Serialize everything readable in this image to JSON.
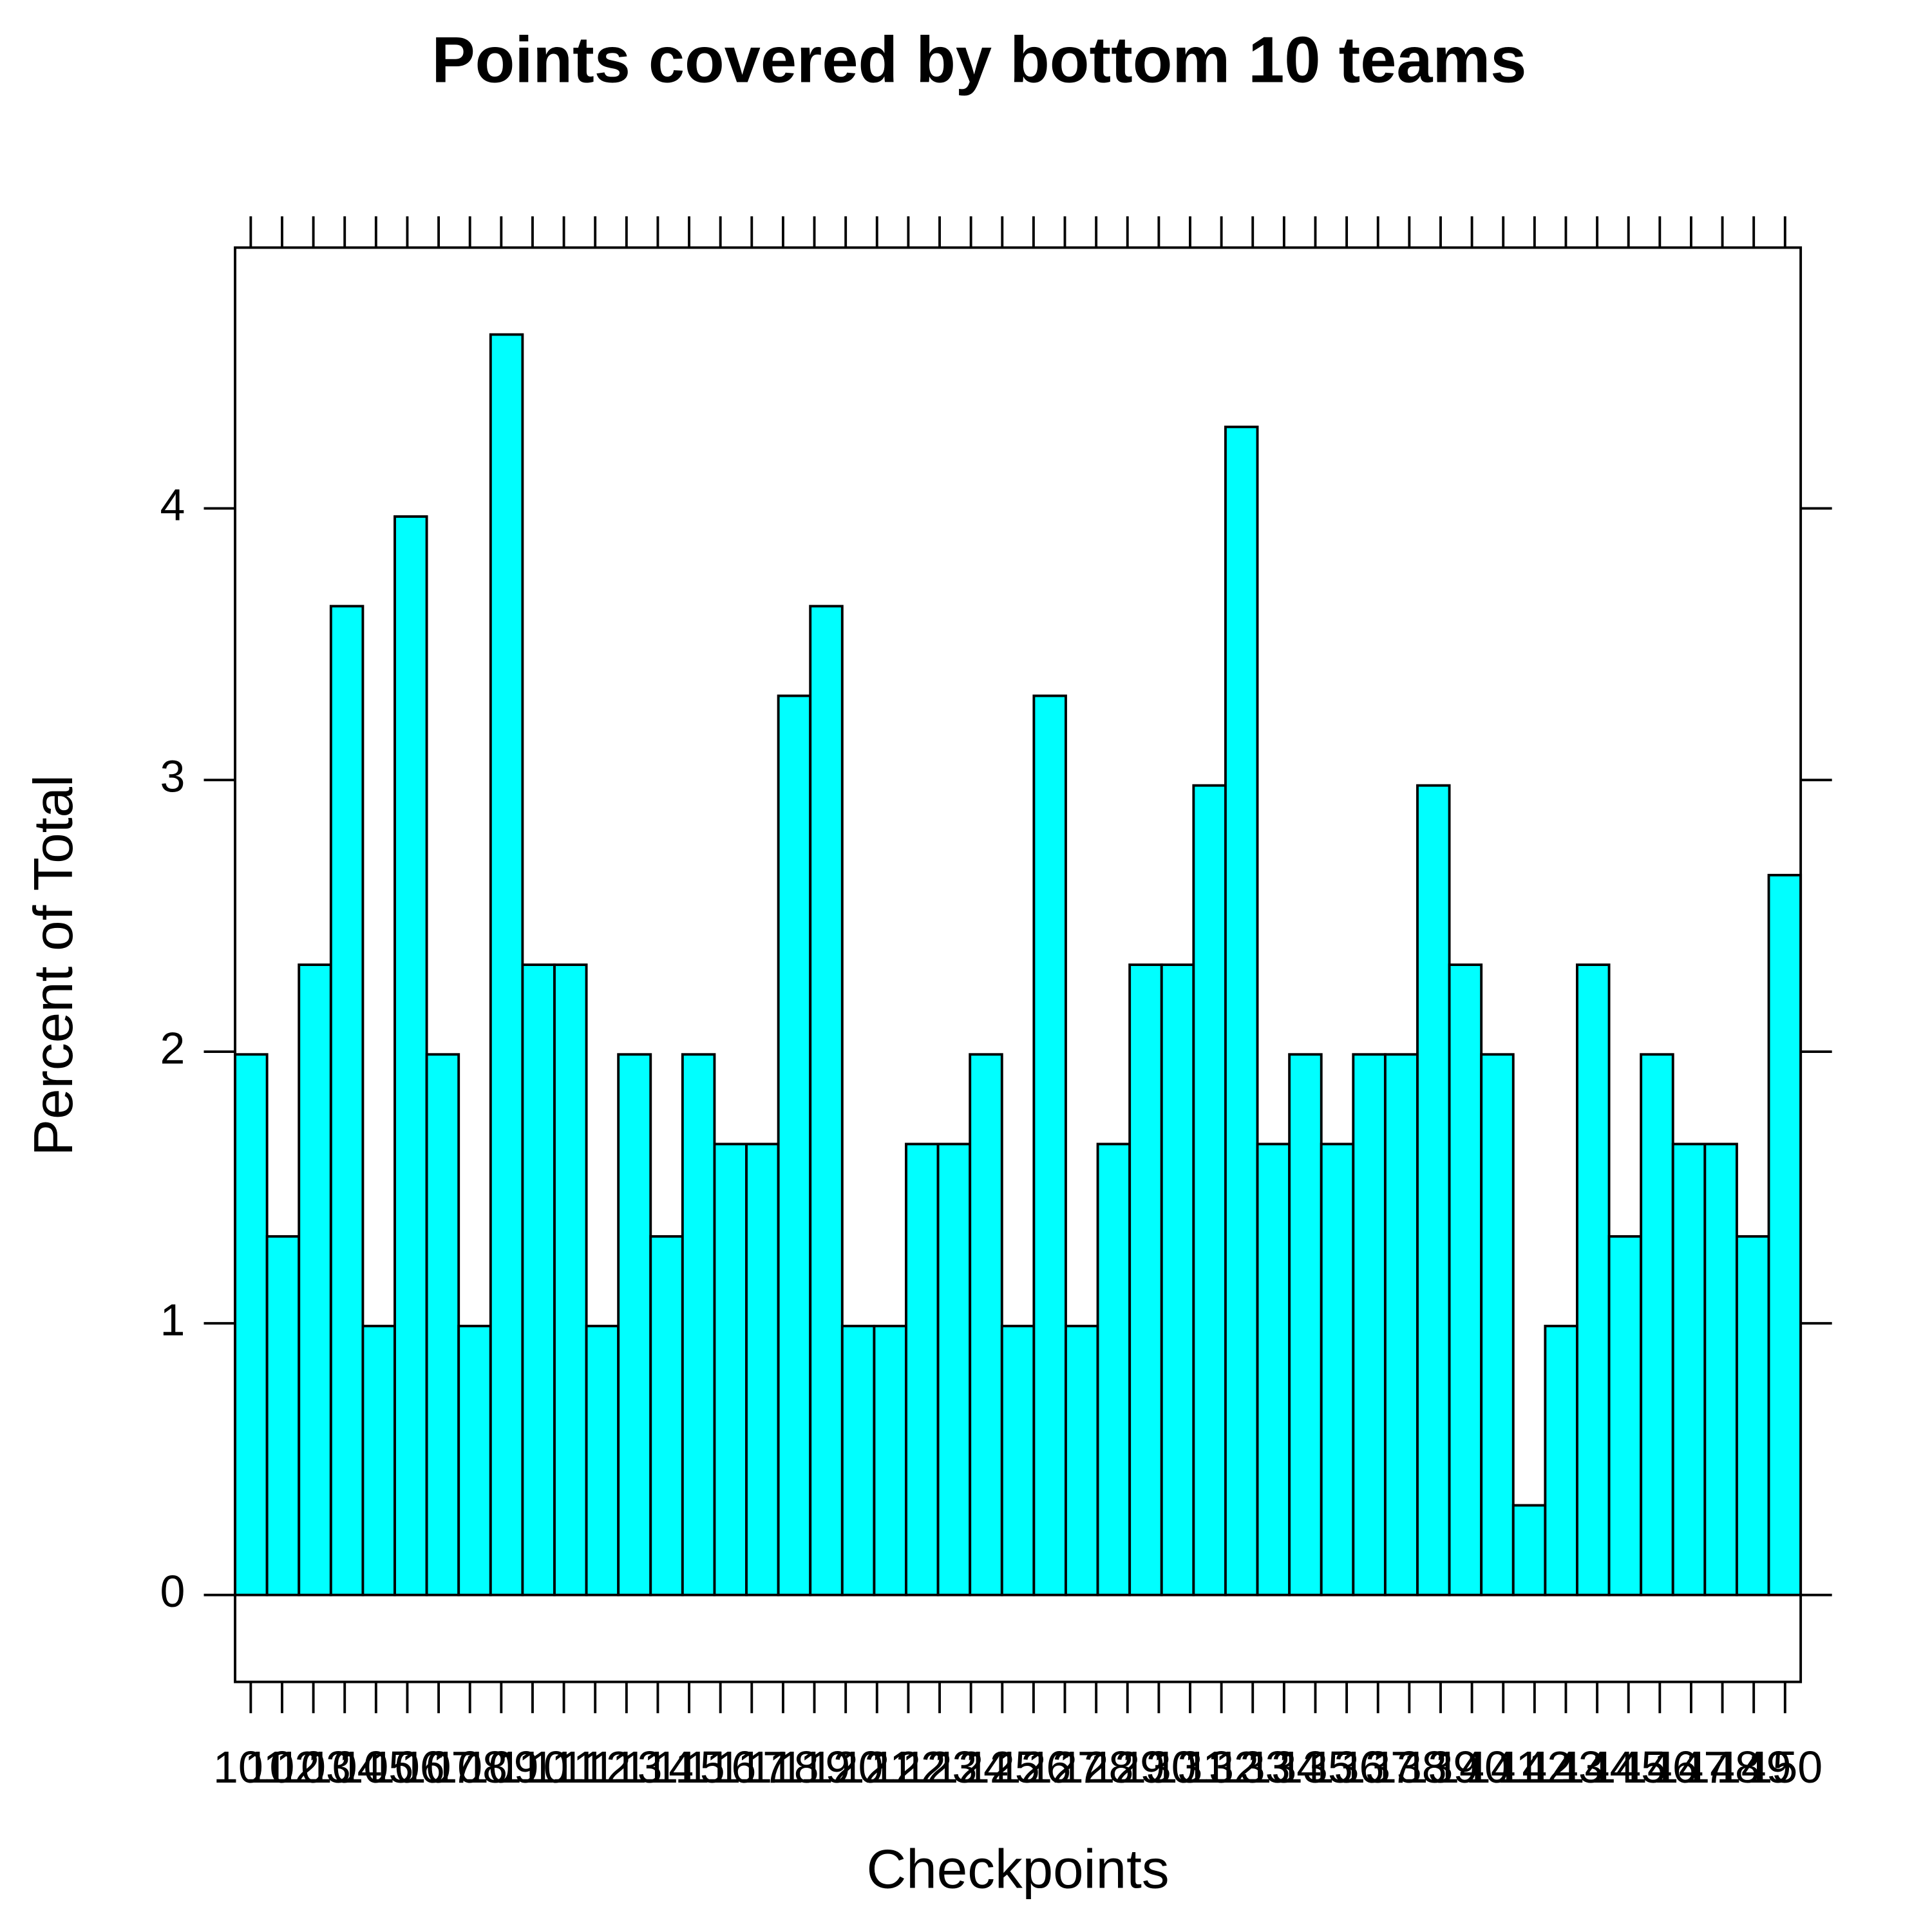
{
  "chart_data": {
    "type": "histogram",
    "title": "Points covered by bottom 10 teams",
    "x_label": "Checkpoints",
    "y_label": "Percent of Total",
    "color": "#00ffff",
    "bins": [
      100.5,
      101.52,
      102.54,
      103.56,
      104.58,
      105.6,
      106.62,
      107.64,
      108.66,
      109.68,
      110.7,
      111.72,
      112.74,
      113.77,
      114.79,
      115.81,
      116.83,
      117.85,
      118.87,
      119.89,
      120.91,
      121.93,
      122.95,
      123.97,
      124.99,
      126.01,
      127.03,
      128.05,
      129.07,
      130.09,
      131.11,
      132.13,
      133.15,
      134.17,
      135.19,
      136.21,
      137.23,
      138.26,
      139.28,
      140.3,
      141.32,
      142.34,
      143.36,
      144.38,
      145.4,
      146.42,
      147.44,
      148.46,
      149.48,
      150.5
    ],
    "values": [
      1.99,
      1.32,
      2.32,
      3.64,
      0.99,
      3.97,
      1.99,
      0.99,
      4.64,
      2.32,
      2.32,
      0.99,
      1.99,
      1.32,
      1.99,
      1.66,
      1.66,
      3.31,
      3.64,
      0.99,
      0.99,
      1.66,
      1.66,
      1.99,
      0.99,
      3.31,
      0.99,
      1.66,
      2.32,
      2.32,
      2.98,
      4.3,
      1.66,
      1.99,
      1.66,
      1.99,
      1.99,
      2.98,
      2.32,
      1.99,
      0.33,
      0.99,
      2.32,
      1.32,
      1.99,
      1.66,
      1.66,
      1.32,
      2.65
    ],
    "xlim": [
      100.5,
      150.5
    ],
    "xticks": [
      101,
      102,
      103,
      104,
      105,
      106,
      107,
      108,
      109,
      110,
      111,
      112,
      113,
      114,
      115,
      116,
      117,
      118,
      119,
      120,
      121,
      122,
      123,
      124,
      125,
      126,
      127,
      128,
      129,
      130,
      131,
      132,
      133,
      134,
      135,
      136,
      137,
      138,
      139,
      140,
      141,
      142,
      143,
      144,
      145,
      146,
      147,
      148,
      149,
      150
    ],
    "ylim": [
      -0.32,
      4.96
    ],
    "yticks": [
      0,
      1,
      2,
      3,
      4
    ]
  }
}
